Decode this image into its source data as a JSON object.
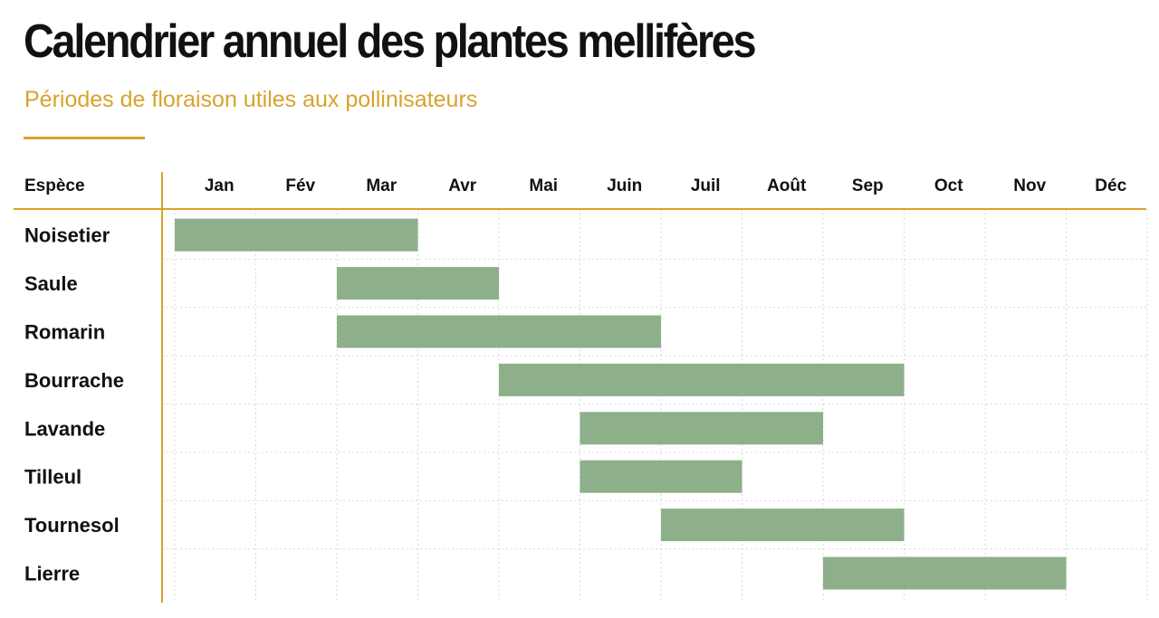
{
  "header": {
    "title": "Calendrier annuel des plantes mellifères",
    "subtitle": "Périodes de floraison utiles aux pollinisateurs"
  },
  "colors": {
    "bar": "#8daf8a",
    "accent": "#d9a22d",
    "grid": "#d9d9d9",
    "text": "#111111"
  },
  "chart_data": {
    "type": "gantt",
    "column_header": "Espèce",
    "months": [
      "Jan",
      "Fév",
      "Mar",
      "Avr",
      "Mai",
      "Juin",
      "Juil",
      "Août",
      "Sep",
      "Oct",
      "Nov",
      "Déc"
    ],
    "rows": [
      {
        "species": "Noisetier",
        "start": 1,
        "end": 3
      },
      {
        "species": "Saule",
        "start": 3,
        "end": 4
      },
      {
        "species": "Romarin",
        "start": 3,
        "end": 6
      },
      {
        "species": "Bourrache",
        "start": 5,
        "end": 9
      },
      {
        "species": "Lavande",
        "start": 6,
        "end": 8
      },
      {
        "species": "Tilleul",
        "start": 6,
        "end": 7
      },
      {
        "species": "Tournesol",
        "start": 7,
        "end": 9
      },
      {
        "species": "Lierre",
        "start": 9,
        "end": 11
      }
    ],
    "grid": true
  }
}
